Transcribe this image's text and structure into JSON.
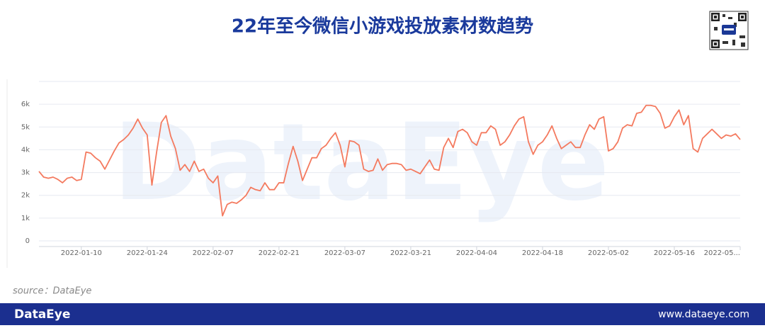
{
  "chart_data": {
    "type": "line",
    "title": "22年至今微信小游戏投放素材数趋势",
    "watermark": "DataEye",
    "source": "source：DataEye",
    "footer_brand": "DataEye",
    "footer_url": "www.dataeye.com",
    "x": [
      "2022-01-01",
      "2022-01-02",
      "2022-01-03",
      "2022-01-04",
      "2022-01-05",
      "2022-01-06",
      "2022-01-07",
      "2022-01-08",
      "2022-01-09",
      "2022-01-10",
      "2022-01-11",
      "2022-01-12",
      "2022-01-13",
      "2022-01-14",
      "2022-01-15",
      "2022-01-16",
      "2022-01-17",
      "2022-01-18",
      "2022-01-19",
      "2022-01-20",
      "2022-01-21",
      "2022-01-22",
      "2022-01-23",
      "2022-01-24",
      "2022-01-25",
      "2022-01-26",
      "2022-01-27",
      "2022-01-28",
      "2022-01-29",
      "2022-01-30",
      "2022-01-31",
      "2022-02-01",
      "2022-02-02",
      "2022-02-03",
      "2022-02-04",
      "2022-02-05",
      "2022-02-06",
      "2022-02-07",
      "2022-02-08",
      "2022-02-09",
      "2022-02-10",
      "2022-02-11",
      "2022-02-12",
      "2022-02-13",
      "2022-02-14",
      "2022-02-15",
      "2022-02-16",
      "2022-02-17",
      "2022-02-18",
      "2022-02-19",
      "2022-02-20",
      "2022-02-21",
      "2022-02-22",
      "2022-02-23",
      "2022-02-24",
      "2022-02-25",
      "2022-02-26",
      "2022-02-27",
      "2022-02-28",
      "2022-03-01",
      "2022-03-02",
      "2022-03-03",
      "2022-03-04",
      "2022-03-05",
      "2022-03-06",
      "2022-03-07",
      "2022-03-08",
      "2022-03-09",
      "2022-03-10",
      "2022-03-11",
      "2022-03-12",
      "2022-03-13",
      "2022-03-14",
      "2022-03-15",
      "2022-03-16",
      "2022-03-17",
      "2022-03-18",
      "2022-03-19",
      "2022-03-20",
      "2022-03-21",
      "2022-03-22",
      "2022-03-23",
      "2022-03-24",
      "2022-03-25",
      "2022-03-26",
      "2022-03-27",
      "2022-03-28",
      "2022-03-29",
      "2022-03-30",
      "2022-03-31",
      "2022-04-01",
      "2022-04-02",
      "2022-04-03",
      "2022-04-04",
      "2022-04-05",
      "2022-04-06",
      "2022-04-07",
      "2022-04-08",
      "2022-04-09",
      "2022-04-10",
      "2022-04-11",
      "2022-04-12",
      "2022-04-13",
      "2022-04-14",
      "2022-04-15",
      "2022-04-16",
      "2022-04-17",
      "2022-04-18",
      "2022-04-19",
      "2022-04-20",
      "2022-04-21",
      "2022-04-22",
      "2022-04-23",
      "2022-04-24",
      "2022-04-25",
      "2022-04-26",
      "2022-04-27",
      "2022-04-28",
      "2022-04-29",
      "2022-04-30",
      "2022-05-01",
      "2022-05-02",
      "2022-05-03",
      "2022-05-04",
      "2022-05-05",
      "2022-05-06",
      "2022-05-07",
      "2022-05-08",
      "2022-05-09",
      "2022-05-10",
      "2022-05-11",
      "2022-05-12",
      "2022-05-13",
      "2022-05-14",
      "2022-05-15",
      "2022-05-16",
      "2022-05-17",
      "2022-05-18",
      "2022-05-19",
      "2022-05-20",
      "2022-05-21",
      "2022-05-22",
      "2022-05-23",
      "2022-05-24",
      "2022-05-25",
      "2022-05-26",
      "2022-05-27",
      "2022-05-28",
      "2022-05-29",
      "2022-05-30"
    ],
    "series": [
      {
        "color": "#f47a5f",
        "values": [
          3050,
          2800,
          2750,
          2800,
          2700,
          2550,
          2750,
          2800,
          2650,
          2700,
          3900,
          3850,
          3650,
          3500,
          3150,
          3550,
          3950,
          4300,
          4450,
          4650,
          4950,
          5350,
          4950,
          4650,
          2450,
          3900,
          5200,
          5500,
          4600,
          4050,
          3100,
          3350,
          3050,
          3500,
          3050,
          3150,
          2750,
          2550,
          2850,
          1100,
          1600,
          1700,
          1650,
          1800,
          2000,
          2350,
          2250,
          2200,
          2550,
          2250,
          2250,
          2550,
          2550,
          3400,
          4150,
          3500,
          2650,
          3150,
          3650,
          3650,
          4050,
          4200,
          4500,
          4750,
          4200,
          3250,
          4400,
          4350,
          4200,
          3150,
          3050,
          3100,
          3600,
          3100,
          3350,
          3400,
          3400,
          3350,
          3100,
          3150,
          3050,
          2950,
          3250,
          3550,
          3150,
          3100,
          4100,
          4500,
          4100,
          4800,
          4900,
          4750,
          4350,
          4200,
          4750,
          4750,
          5050,
          4900,
          4200,
          4350,
          4650,
          5050,
          5350,
          5450,
          4350,
          3800,
          4200,
          4350,
          4650,
          5050,
          4500,
          4050,
          4200,
          4350,
          4100,
          4100,
          4650,
          5100,
          4900,
          5350,
          5450,
          3950,
          4050,
          4350,
          4950,
          5100,
          5050,
          5600,
          5650,
          5950,
          5950,
          5900,
          5600,
          4950,
          5050,
          5450,
          5750,
          5100,
          5500,
          4050,
          3900,
          4500,
          4700,
          4900,
          4700,
          4500,
          4650,
          4600,
          4700,
          4450
        ]
      }
    ],
    "xticks": [
      "2022-01-10",
      "2022-01-24",
      "2022-02-07",
      "2022-02-21",
      "2022-03-07",
      "2022-03-21",
      "2022-04-04",
      "2022-04-18",
      "2022-05-02",
      "2022-05-16",
      {
        "value": "2022-05-30",
        "label": "2022-05..."
      }
    ],
    "ylim": [
      0,
      7000
    ],
    "yticks": [
      0,
      {
        "value": 1000,
        "label": "1k"
      },
      {
        "value": 2000,
        "label": "2k"
      },
      {
        "value": 3000,
        "label": "3k"
      },
      {
        "value": 4000,
        "label": "4k"
      },
      {
        "value": 5000,
        "label": "5k"
      },
      {
        "value": 6000,
        "label": "6k"
      }
    ],
    "grid": true
  }
}
